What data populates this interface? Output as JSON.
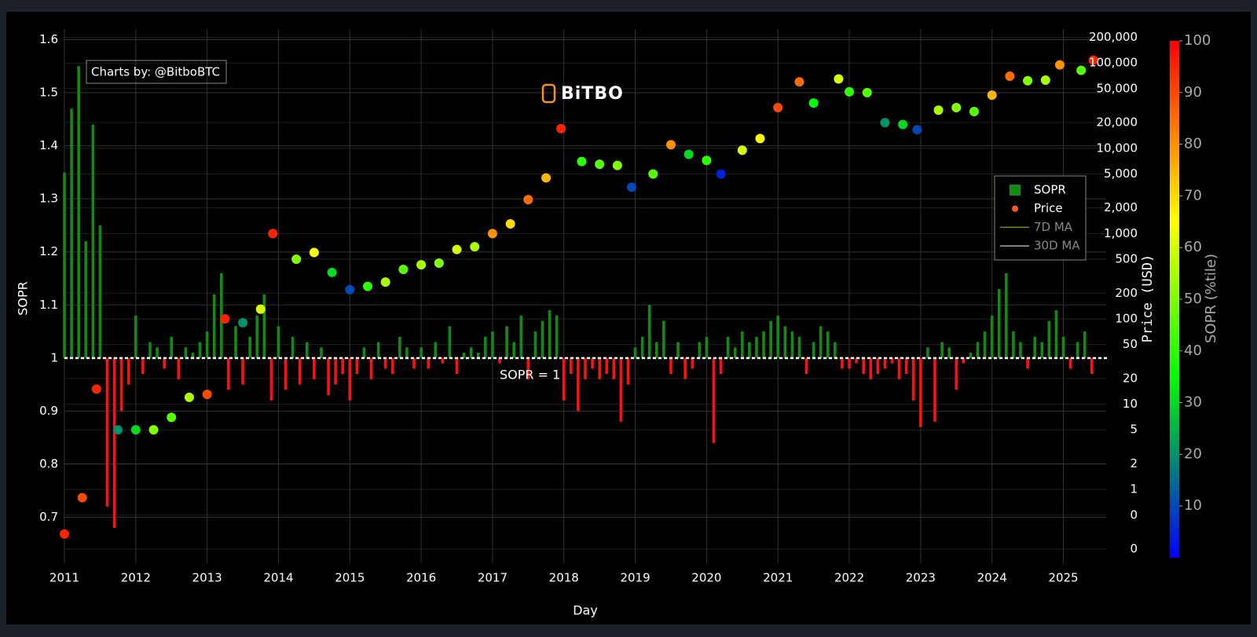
{
  "chart_data": {
    "type": "combo",
    "xlabel": "Day",
    "ylabel": "SOPR",
    "y2label": "Price (USD)",
    "annotations": [
      "Charts by: @BitboBTC",
      "SOPR = 1"
    ],
    "logo": "BiTBO",
    "grid": true,
    "legend": "right",
    "y2log": true,
    "bar_base": 1,
    "xlim": [
      2011,
      2025.6
    ],
    "xticks": [
      2011,
      2012,
      2013,
      2014,
      2015,
      2016,
      2017,
      2018,
      2019,
      2020,
      2021,
      2022,
      2023,
      2024,
      2025
    ],
    "ylim": [
      0.64,
      1.62
    ],
    "yticks": [
      0.7,
      0.8,
      0.9,
      1,
      1.1,
      1.2,
      1.3,
      1.4,
      1.5,
      1.6
    ],
    "y2lim": [
      0.2,
      250000
    ],
    "y2ticks": [
      {
        "value": 0.2,
        "label": "0"
      },
      {
        "value": 0.5,
        "label": "0"
      },
      1,
      2,
      5,
      10,
      20,
      50,
      100,
      200,
      500,
      {
        "value": 1000,
        "label": "1,000"
      },
      {
        "value": 2000,
        "label": "2,000"
      },
      {
        "value": 5000,
        "label": "5,000"
      },
      {
        "value": 10000,
        "label": "10,000"
      },
      {
        "value": 20000,
        "label": "20,000"
      },
      {
        "value": 50000,
        "label": "50,000"
      },
      {
        "value": 100000,
        "label": "100,000"
      },
      {
        "value": 200000,
        "label": "200,000"
      }
    ],
    "colorbar": {
      "title": "SOPR (%tile)",
      "lim": [
        0,
        100
      ],
      "ticks": [
        10,
        20,
        30,
        40,
        50,
        60,
        70,
        80,
        90,
        100
      ],
      "colorscale": [
        [
          0,
          "#0000ff"
        ],
        [
          35,
          "#00ff00"
        ],
        [
          65,
          "#ffff00"
        ],
        [
          100,
          "#ff0000"
        ]
      ]
    },
    "series": [
      {
        "name": "SOPR",
        "type": "bar",
        "color": "#138a13",
        "color_below": "#ff1010",
        "x": [
          2011,
          2011.1,
          2011.2,
          2011.3,
          2011.4,
          2011.5,
          2011.6,
          2011.7,
          2011.8,
          2011.9,
          2012,
          2012.1,
          2012.2,
          2012.3,
          2012.4,
          2012.5,
          2012.6,
          2012.7,
          2012.8,
          2012.9,
          2013,
          2013.1,
          2013.2,
          2013.3,
          2013.4,
          2013.5,
          2013.6,
          2013.7,
          2013.8,
          2013.9,
          2014,
          2014.1,
          2014.2,
          2014.3,
          2014.4,
          2014.5,
          2014.6,
          2014.7,
          2014.8,
          2014.9,
          2015,
          2015.1,
          2015.2,
          2015.3,
          2015.4,
          2015.5,
          2015.6,
          2015.7,
          2015.8,
          2015.9,
          2016,
          2016.1,
          2016.2,
          2016.3,
          2016.4,
          2016.5,
          2016.6,
          2016.7,
          2016.8,
          2016.9,
          2017,
          2017.1,
          2017.2,
          2017.3,
          2017.4,
          2017.5,
          2017.6,
          2017.7,
          2017.8,
          2017.9,
          2018,
          2018.1,
          2018.2,
          2018.3,
          2018.4,
          2018.5,
          2018.6,
          2018.7,
          2018.8,
          2018.9,
          2019,
          2019.1,
          2019.2,
          2019.3,
          2019.4,
          2019.5,
          2019.6,
          2019.7,
          2019.8,
          2019.9,
          2020,
          2020.1,
          2020.2,
          2020.3,
          2020.4,
          2020.5,
          2020.6,
          2020.7,
          2020.8,
          2020.9,
          2021,
          2021.1,
          2021.2,
          2021.3,
          2021.4,
          2021.5,
          2021.6,
          2021.7,
          2021.8,
          2021.9,
          2022,
          2022.1,
          2022.2,
          2022.3,
          2022.4,
          2022.5,
          2022.6,
          2022.7,
          2022.8,
          2022.9,
          2023,
          2023.1,
          2023.2,
          2023.3,
          2023.4,
          2023.5,
          2023.6,
          2023.7,
          2023.8,
          2023.9,
          2024,
          2024.1,
          2024.2,
          2024.3,
          2024.4,
          2024.5,
          2024.6,
          2024.7,
          2024.8,
          2024.9,
          2025,
          2025.1,
          2025.2,
          2025.3,
          2025.4
        ],
        "values": [
          1.35,
          1.47,
          1.55,
          1.22,
          1.44,
          1.25,
          0.72,
          0.68,
          0.9,
          0.95,
          1.08,
          0.97,
          1.03,
          1.02,
          0.98,
          1.04,
          0.96,
          1.02,
          1.01,
          1.03,
          1.05,
          1.12,
          1.16,
          0.94,
          1.06,
          0.95,
          1.04,
          1.08,
          1.12,
          0.92,
          1.06,
          0.94,
          1.04,
          0.95,
          1.03,
          0.96,
          1.02,
          0.93,
          0.95,
          0.97,
          0.92,
          0.97,
          1.02,
          0.96,
          1.03,
          0.98,
          0.97,
          1.04,
          1.02,
          0.98,
          1.02,
          0.98,
          1.03,
          0.99,
          1.06,
          0.97,
          1.01,
          1.02,
          1.01,
          1.04,
          1.05,
          0.99,
          1.06,
          1.03,
          1.08,
          0.96,
          1.05,
          1.07,
          1.09,
          1.08,
          0.92,
          0.97,
          0.9,
          0.96,
          0.98,
          0.96,
          0.97,
          0.96,
          0.88,
          0.95,
          1.02,
          1.04,
          1.1,
          1.03,
          1.07,
          0.97,
          1.03,
          0.96,
          0.98,
          1.03,
          1.04,
          0.84,
          0.97,
          1.04,
          1.02,
          1.05,
          1.03,
          1.04,
          1.05,
          1.07,
          1.08,
          1.06,
          1.05,
          1.04,
          0.97,
          1.03,
          1.06,
          1.05,
          1.03,
          0.98,
          0.98,
          0.99,
          0.97,
          0.96,
          0.97,
          0.98,
          0.99,
          0.96,
          0.97,
          0.92,
          0.87,
          1.02,
          0.88,
          1.03,
          1.02,
          0.94,
          0.99,
          1.01,
          1.03,
          1.05,
          1.08,
          1.13,
          1.16,
          1.05,
          1.03,
          0.98,
          1.04,
          1.03,
          1.07,
          1.09,
          1.04,
          0.98,
          1.03,
          1.05,
          0.97
        ]
      },
      {
        "name": "Price",
        "type": "scatter",
        "axis": "y2",
        "color": "#ff5a1f",
        "x": [
          2011,
          2011.25,
          2011.45,
          2011.75,
          2012,
          2012.25,
          2012.5,
          2012.75,
          2013,
          2013.25,
          2013.5,
          2013.75,
          2013.92,
          2014.25,
          2014.5,
          2014.75,
          2015,
          2015.25,
          2015.5,
          2015.75,
          2016,
          2016.25,
          2016.5,
          2016.75,
          2017,
          2017.25,
          2017.5,
          2017.75,
          2017.96,
          2018.25,
          2018.5,
          2018.75,
          2018.95,
          2019.25,
          2019.5,
          2019.75,
          2020,
          2020.2,
          2020.5,
          2020.75,
          2021,
          2021.3,
          2021.5,
          2021.85,
          2022,
          2022.25,
          2022.5,
          2022.75,
          2022.95,
          2023.25,
          2023.5,
          2023.75,
          2024,
          2024.25,
          2024.5,
          2024.75,
          2024.95,
          2025.25,
          2025.42
        ],
        "values": [
          0.3,
          0.8,
          15,
          5,
          5,
          5,
          7,
          12,
          13,
          100,
          90,
          130,
          1000,
          500,
          600,
          350,
          220,
          240,
          270,
          380,
          430,
          450,
          650,
          700,
          1000,
          1300,
          2500,
          4500,
          17000,
          7000,
          6500,
          6300,
          3500,
          5000,
          11000,
          8500,
          7200,
          5000,
          9500,
          13000,
          30000,
          60000,
          34000,
          65000,
          46000,
          45000,
          20000,
          19000,
          16500,
          28000,
          30000,
          27000,
          42000,
          70000,
          62000,
          63000,
          95000,
          82000,
          108000
        ],
        "percentile": [
          95,
          90,
          95,
          20,
          30,
          50,
          45,
          55,
          90,
          95,
          20,
          60,
          95,
          50,
          65,
          30,
          10,
          40,
          55,
          45,
          55,
          50,
          60,
          55,
          80,
          70,
          85,
          75,
          95,
          40,
          45,
          50,
          10,
          45,
          80,
          30,
          40,
          5,
          60,
          65,
          90,
          85,
          35,
          60,
          40,
          45,
          20,
          30,
          10,
          55,
          50,
          45,
          75,
          85,
          50,
          55,
          80,
          45,
          95
        ]
      },
      {
        "name": "7D MA",
        "type": "line",
        "color": "#6b8e23",
        "visible": false
      },
      {
        "name": "30D MA",
        "type": "line",
        "color": "#aaaaaa",
        "visible": false
      }
    ]
  }
}
